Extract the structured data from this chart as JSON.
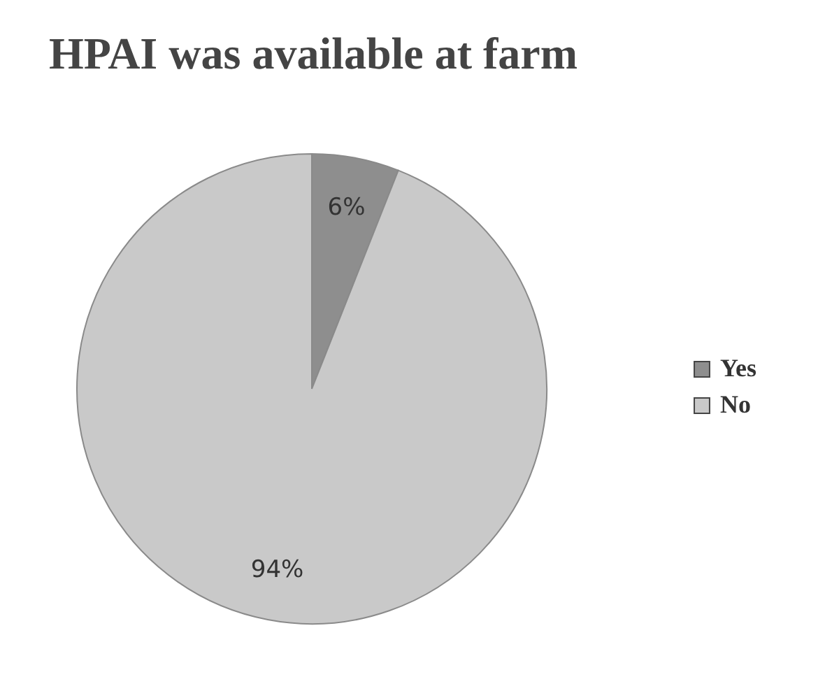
{
  "chart_data": {
    "type": "pie",
    "title": "HPAI was available at farm",
    "categories": [
      "Yes",
      "No"
    ],
    "values": [
      6,
      94
    ],
    "colors": [
      "#8e8e8e",
      "#c9c9c9"
    ],
    "value_labels": [
      "6%",
      "94%"
    ],
    "legend": "right"
  }
}
